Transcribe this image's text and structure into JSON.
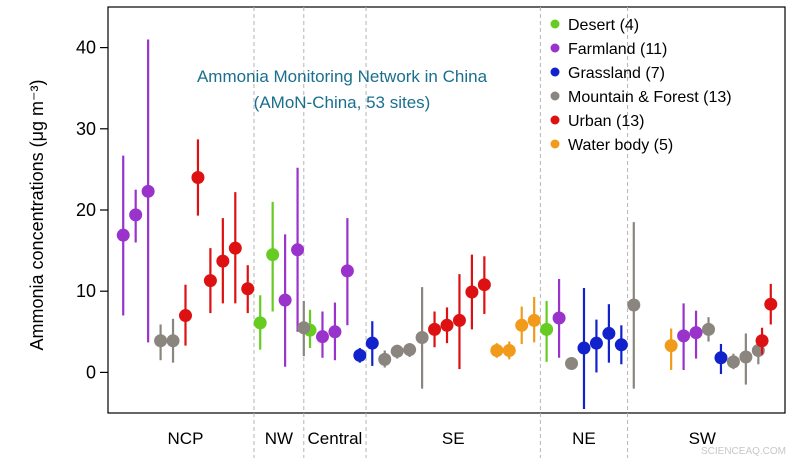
{
  "chart_data": {
    "type": "scatter",
    "annotation_lines": [
      "Ammonia Monitoring Network in China",
      "(AMoN-China, 53 sites)"
    ],
    "ylabel": "Ammonia concentrations (μg m⁻³)",
    "ylim": [
      -5,
      45
    ],
    "yticks": [
      0,
      10,
      20,
      30,
      40
    ],
    "grid": false,
    "legend_position": "top-right",
    "regions": [
      {
        "label": "NCP",
        "start": 0,
        "end": 11
      },
      {
        "label": "NW",
        "start": 11,
        "end": 15
      },
      {
        "label": "Central",
        "start": 15,
        "end": 20
      },
      {
        "label": "SE",
        "start": 20,
        "end": 34
      },
      {
        "label": "NE",
        "start": 34,
        "end": 41
      },
      {
        "label": "SW",
        "start": 41,
        "end": 53
      }
    ],
    "series": [
      {
        "name": "Desert (4)",
        "color": "#66cc22",
        "points": [
          {
            "x": 11.5,
            "y": 6.1,
            "lo": 2.8,
            "hi": 9.5
          },
          {
            "x": 12.5,
            "y": 14.5,
            "lo": 7.5,
            "hi": 21.0
          },
          {
            "x": 15.5,
            "y": 5.2,
            "lo": 3.0,
            "hi": 7.7
          },
          {
            "x": 34.5,
            "y": 5.3,
            "lo": 1.3,
            "hi": 8.8
          }
        ]
      },
      {
        "name": "Farmland (11)",
        "color": "#9a33cc",
        "points": [
          {
            "x": 0.5,
            "y": 16.9,
            "lo": 7.0,
            "hi": 26.7
          },
          {
            "x": 1.5,
            "y": 19.4,
            "lo": 16.0,
            "hi": 22.5
          },
          {
            "x": 2.5,
            "y": 22.3,
            "lo": 3.7,
            "hi": 41.0
          },
          {
            "x": 13.5,
            "y": 8.9,
            "lo": 0.7,
            "hi": 17.0
          },
          {
            "x": 14.5,
            "y": 15.1,
            "lo": 5.0,
            "hi": 25.2
          },
          {
            "x": 16.5,
            "y": 4.4,
            "lo": 1.8,
            "hi": 7.5
          },
          {
            "x": 17.5,
            "y": 5.0,
            "lo": 1.5,
            "hi": 8.6
          },
          {
            "x": 18.5,
            "y": 12.5,
            "lo": 5.8,
            "hi": 19.0
          },
          {
            "x": 35.5,
            "y": 6.7,
            "lo": 1.8,
            "hi": 11.5
          },
          {
            "x": 45.5,
            "y": 4.5,
            "lo": 0.3,
            "hi": 8.5
          },
          {
            "x": 46.5,
            "y": 4.9,
            "lo": 1.7,
            "hi": 7.6
          }
        ]
      },
      {
        "name": "Grassland (7)",
        "color": "#1122cc",
        "points": [
          {
            "x": 19.5,
            "y": 2.1,
            "lo": 1.2,
            "hi": 3.0
          },
          {
            "x": 20.5,
            "y": 3.6,
            "lo": 0.8,
            "hi": 6.3
          },
          {
            "x": 37.5,
            "y": 3.0,
            "lo": -4.5,
            "hi": 10.4
          },
          {
            "x": 38.5,
            "y": 3.6,
            "lo": 0.0,
            "hi": 6.5
          },
          {
            "x": 39.5,
            "y": 4.8,
            "lo": 1.2,
            "hi": 8.4
          },
          {
            "x": 40.5,
            "y": 3.4,
            "lo": 1.0,
            "hi": 5.8
          },
          {
            "x": 48.5,
            "y": 1.8,
            "lo": -0.2,
            "hi": 3.5
          }
        ]
      },
      {
        "name": "Mountain & Forest (13)",
        "color": "#8a857e",
        "points": [
          {
            "x": 3.5,
            "y": 3.9,
            "lo": 1.5,
            "hi": 5.9
          },
          {
            "x": 4.5,
            "y": 3.9,
            "lo": 1.2,
            "hi": 6.6
          },
          {
            "x": 15.0,
            "y": 5.5,
            "lo": 2.0,
            "hi": 8.8
          },
          {
            "x": 21.5,
            "y": 1.6,
            "lo": 0.6,
            "hi": 2.7
          },
          {
            "x": 22.5,
            "y": 2.6,
            "lo": 1.7,
            "hi": 3.4
          },
          {
            "x": 23.5,
            "y": 2.8,
            "lo": 1.9,
            "hi": 3.6
          },
          {
            "x": 24.5,
            "y": 4.3,
            "lo": -2.0,
            "hi": 10.5
          },
          {
            "x": 36.5,
            "y": 1.1,
            "lo": 0.5,
            "hi": 1.7
          },
          {
            "x": 41.5,
            "y": 8.3,
            "lo": -2.0,
            "hi": 18.5
          },
          {
            "x": 47.5,
            "y": 5.3,
            "lo": 3.8,
            "hi": 6.8
          },
          {
            "x": 49.5,
            "y": 1.3,
            "lo": 0.4,
            "hi": 2.3
          },
          {
            "x": 50.5,
            "y": 1.9,
            "lo": -1.5,
            "hi": 4.8
          },
          {
            "x": 51.5,
            "y": 2.7,
            "lo": 1.0,
            "hi": 4.3
          }
        ]
      },
      {
        "name": "Urban (13)",
        "color": "#dd1111",
        "points": [
          {
            "x": 5.5,
            "y": 7.0,
            "lo": 3.3,
            "hi": 10.8
          },
          {
            "x": 6.5,
            "y": 24.0,
            "lo": 19.3,
            "hi": 28.7
          },
          {
            "x": 7.5,
            "y": 11.3,
            "lo": 7.3,
            "hi": 15.3
          },
          {
            "x": 8.5,
            "y": 13.7,
            "lo": 8.5,
            "hi": 19.0
          },
          {
            "x": 9.5,
            "y": 15.3,
            "lo": 8.5,
            "hi": 22.2
          },
          {
            "x": 10.5,
            "y": 10.3,
            "lo": 7.3,
            "hi": 13.2
          },
          {
            "x": 25.5,
            "y": 5.3,
            "lo": 3.1,
            "hi": 7.5
          },
          {
            "x": 26.5,
            "y": 5.8,
            "lo": 3.6,
            "hi": 8.0
          },
          {
            "x": 27.5,
            "y": 6.4,
            "lo": 0.4,
            "hi": 12.1
          },
          {
            "x": 28.5,
            "y": 9.9,
            "lo": 5.3,
            "hi": 14.5
          },
          {
            "x": 29.5,
            "y": 10.8,
            "lo": 7.2,
            "hi": 14.3
          },
          {
            "x": 51.8,
            "y": 3.9,
            "lo": 2.2,
            "hi": 5.5
          },
          {
            "x": 52.5,
            "y": 8.4,
            "lo": 5.9,
            "hi": 10.9
          }
        ]
      },
      {
        "name": "Water body (5)",
        "color": "#f29a1a",
        "points": [
          {
            "x": 30.5,
            "y": 2.7,
            "lo": 1.8,
            "hi": 3.6
          },
          {
            "x": 31.5,
            "y": 2.7,
            "lo": 1.6,
            "hi": 3.8
          },
          {
            "x": 32.5,
            "y": 5.8,
            "lo": 3.5,
            "hi": 8.1
          },
          {
            "x": 33.5,
            "y": 6.4,
            "lo": 3.7,
            "hi": 9.3
          },
          {
            "x": 44.5,
            "y": 3.3,
            "lo": 0.3,
            "hi": 5.4
          }
        ]
      }
    ]
  },
  "watermark": "SCIENCEAQ.COM"
}
